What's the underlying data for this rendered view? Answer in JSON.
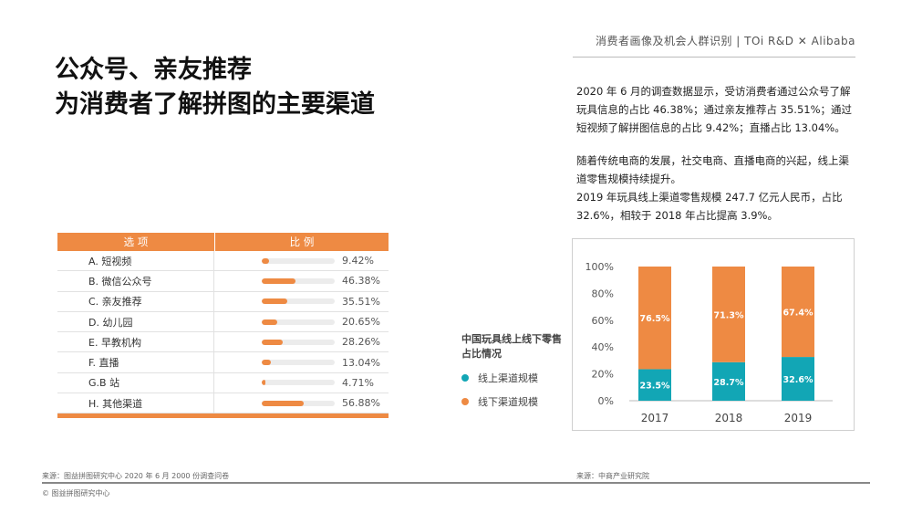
{
  "header": {
    "text": "消费者画像及机会人群识别  |  TOi R&D ✕ Alibaba"
  },
  "title": {
    "line1": "公众号、亲友推荐",
    "line2": "为消费者了解拼图的主要渠道"
  },
  "description": {
    "p1": "2020 年 6 月的调查数据显示，受访消费者通过公众号了解玩具信息的占比 46.38%；通过亲友推荐占 35.51%；通过短视频了解拼图信息的占比 9.42%；直播占比 13.04%。",
    "p2": "随着传统电商的发展，社交电商、直播电商的兴起，线上渠道零售规模持续提升。",
    "p3": "2019 年玩具线上渠道零售规模 247.7 亿元人民币，占比 32.6%，相较于 2018 年占比提高 3.9%。"
  },
  "table": {
    "header": [
      "选 项",
      "比 例"
    ],
    "rows": [
      {
        "label": "A. 短视频",
        "value": 9.42,
        "text": "9.42%"
      },
      {
        "label": "B. 微信公众号",
        "value": 46.38,
        "text": "46.38%"
      },
      {
        "label": "C. 亲友推荐",
        "value": 35.51,
        "text": "35.51%"
      },
      {
        "label": "D. 幼儿园",
        "value": 20.65,
        "text": "20.65%"
      },
      {
        "label": "E. 早教机构",
        "value": 28.26,
        "text": "28.26%"
      },
      {
        "label": "F. 直播",
        "value": 13.04,
        "text": "13.04%"
      },
      {
        "label": "G.B 站",
        "value": 4.71,
        "text": "4.71%"
      },
      {
        "label": "H. 其他渠道",
        "value": 56.88,
        "text": "56.88%"
      }
    ]
  },
  "legend": {
    "title": "中国玩具线上线下零售占比情况",
    "online": "线上渠道规模",
    "offline": "线下渠道规模"
  },
  "colors": {
    "accent": "#ee8a43",
    "online": "#12a6b5",
    "offline": "#ee8a43"
  },
  "chart_data": {
    "type": "bar",
    "stacked": true,
    "categories": [
      "2017",
      "2018",
      "2019"
    ],
    "series": [
      {
        "name": "线上渠道规模",
        "values": [
          23.5,
          28.7,
          32.6
        ],
        "labels": [
          "23.5%",
          "28.7%",
          "32.6%"
        ]
      },
      {
        "name": "线下渠道规模",
        "values": [
          76.5,
          71.3,
          67.4
        ],
        "labels": [
          "76.5%",
          "71.3%",
          "67.4%"
        ]
      }
    ],
    "yticks": [
      "0%",
      "20%",
      "40%",
      "60%",
      "80%",
      "100%"
    ],
    "ylim": [
      0,
      100
    ],
    "grid": false
  },
  "sources": {
    "left": "来源：图益拼图研究中心 2020 年 6 月 2000 份调查问卷",
    "right": "来源：中商产业研究院",
    "copyright": "© 图益拼图研究中心"
  }
}
